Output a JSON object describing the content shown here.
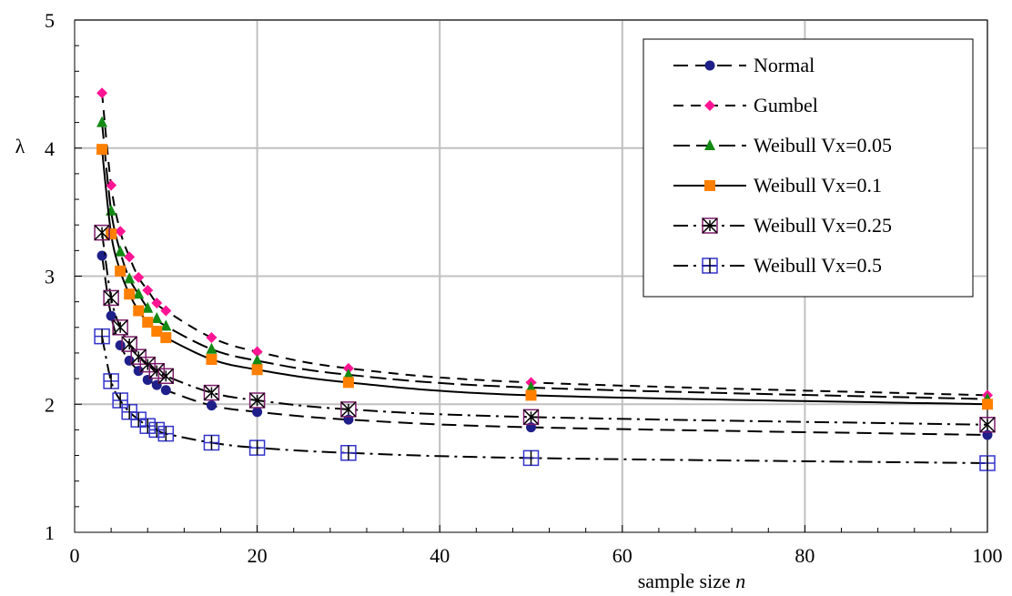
{
  "chart_data": {
    "type": "line",
    "title": "",
    "xlabel": "sample size",
    "xlabel_var": "n",
    "ylabel": "λ",
    "xlim": [
      0,
      100
    ],
    "ylim": [
      1,
      5
    ],
    "xticks": [
      0,
      20,
      40,
      60,
      80,
      100
    ],
    "yticks": [
      1,
      2,
      3,
      4,
      5
    ],
    "x_tick_labels": [
      "0",
      "20",
      "40",
      "60",
      "80",
      "100"
    ],
    "y_tick_labels": [
      "1",
      "2",
      "3",
      "4",
      "5"
    ],
    "grid": true,
    "legend_position": "top-right",
    "x": [
      3,
      4,
      5,
      6,
      7,
      8,
      9,
      10,
      15,
      20,
      30,
      50,
      100
    ],
    "series": [
      {
        "name": "Normal",
        "marker": "circle",
        "color": "#1f1f8a",
        "dash": "16,8",
        "values": [
          3.16,
          2.69,
          2.46,
          2.34,
          2.26,
          2.19,
          2.15,
          2.11,
          1.99,
          1.94,
          1.88,
          1.82,
          1.76
        ]
      },
      {
        "name": "Gumbel",
        "marker": "diamond",
        "color": "#ff1493",
        "dash": "11,8",
        "values": [
          4.43,
          3.71,
          3.35,
          3.15,
          2.99,
          2.89,
          2.79,
          2.73,
          2.52,
          2.41,
          2.28,
          2.17,
          2.07
        ]
      },
      {
        "name": "Weibull Vx=0.05",
        "marker": "triangle",
        "color": "#138a13",
        "dash": "18,7",
        "values": [
          4.2,
          3.51,
          3.19,
          2.98,
          2.86,
          2.75,
          2.67,
          2.61,
          2.43,
          2.34,
          2.23,
          2.13,
          2.04
        ]
      },
      {
        "name": "Weibull Vx=0.1",
        "marker": "square",
        "color": "#ff7f00",
        "dash": "",
        "values": [
          3.99,
          3.33,
          3.04,
          2.86,
          2.73,
          2.64,
          2.57,
          2.52,
          2.35,
          2.27,
          2.17,
          2.07,
          2.0
        ]
      },
      {
        "name": "Weibull Vx=0.25",
        "marker": "square-x",
        "color": "#7b1b6a",
        "dash": "16,6,3,6",
        "values": [
          3.34,
          2.83,
          2.6,
          2.47,
          2.37,
          2.31,
          2.26,
          2.22,
          2.09,
          2.03,
          1.96,
          1.9,
          1.84
        ]
      },
      {
        "name": "Weibull Vx=0.5",
        "marker": "square-plus",
        "color": "#3333cc",
        "dash": "16,6,3,6",
        "values": [
          2.53,
          2.18,
          2.03,
          1.94,
          1.88,
          1.83,
          1.8,
          1.77,
          1.7,
          1.66,
          1.62,
          1.58,
          1.54
        ]
      }
    ]
  }
}
